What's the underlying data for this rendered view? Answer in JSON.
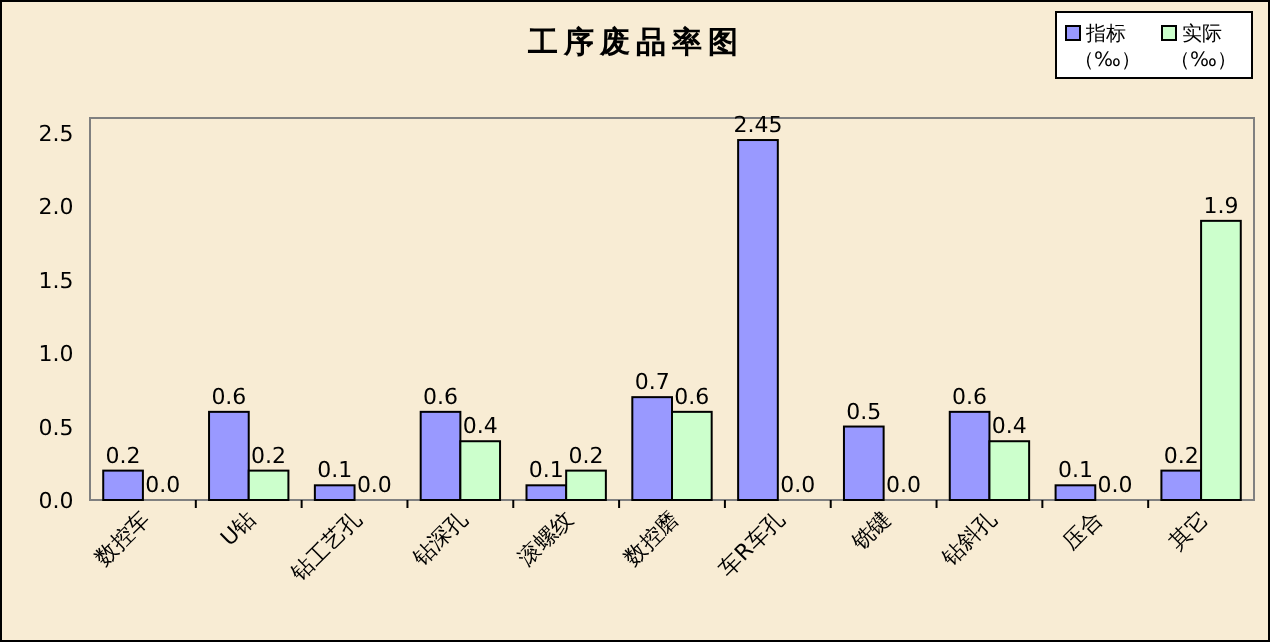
{
  "chart_data": {
    "type": "bar",
    "title": "工序废品率图",
    "categories": [
      "数控车",
      "U钻",
      "钻工艺孔",
      "钻深孔",
      "滚螺纹",
      "数控磨",
      "车R车孔",
      "铣键",
      "钻斜孔",
      "压合",
      "其它"
    ],
    "series": [
      {
        "name": "指标（‰）",
        "color": "#9999ff",
        "values": [
          0.2,
          0.6,
          0.1,
          0.6,
          0.1,
          0.7,
          2.45,
          0.5,
          0.6,
          0.1,
          0.2
        ],
        "value_labels": [
          "0.2",
          "0.6",
          "0.1",
          "0.6",
          "0.1",
          "0.7",
          "2.45",
          "0.5",
          "0.6",
          "0.1",
          "0.2"
        ]
      },
      {
        "name": "实际（‰）",
        "color": "#ccffcc",
        "values": [
          0.0,
          0.2,
          0.0,
          0.4,
          0.2,
          0.6,
          0.0,
          0.0,
          0.4,
          0.0,
          1.9
        ],
        "value_labels": [
          "0.0",
          "0.2",
          "0.0",
          "0.4",
          "0.2",
          "0.6",
          "0.0",
          "0.0",
          "0.4",
          "0.0",
          "1.9"
        ]
      }
    ],
    "ylim": [
      0,
      2.6
    ],
    "yticks": [
      {
        "value": 0,
        "label": "0.0"
      },
      {
        "value": 0.5,
        "label": "0.5"
      },
      {
        "value": 1,
        "label": "1.0"
      },
      {
        "value": 1.5,
        "label": "1.5"
      },
      {
        "value": 2,
        "label": "2.0"
      },
      {
        "value": 2.5,
        "label": "2.5"
      }
    ],
    "grid": false,
    "legend": "top right"
  }
}
